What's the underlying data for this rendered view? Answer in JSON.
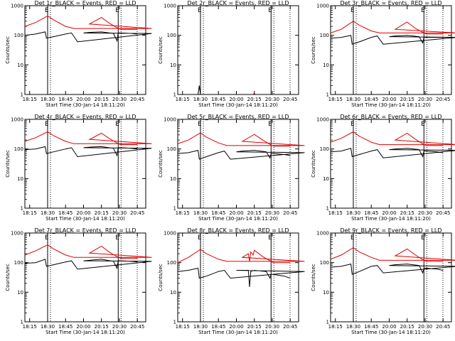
{
  "colors": {
    "events": "#000000",
    "lld": "#e00000",
    "background": "#ffffff"
  },
  "x_tick_labels": [
    "18:15",
    "18:30",
    "18:45",
    "20:00",
    "20:15",
    "20:30",
    "20:45"
  ],
  "y_tick_labels": [
    "1",
    "10",
    "100",
    "1000"
  ],
  "chart_data": [
    {
      "type": "line",
      "title": "Det 1r_BLACK = Events, RED = LLD",
      "xlabel": "Start Time (30-Jan-14 18:11:20)",
      "ylabel": "Counts/sec",
      "yscale": "log",
      "ylim": [
        1,
        1000
      ],
      "series": [
        {
          "name": "Events",
          "x": [
            "18:11",
            "18:20",
            "18:28",
            "18:29",
            "18:35",
            "18:45",
            "18:50",
            "18:55",
            "19:57",
            "20:00",
            "20:05",
            "20:15",
            "20:25",
            "20:28",
            "20:29",
            "20:31",
            "20:40",
            "20:45"
          ],
          "values": [
            100,
            110,
            130,
            80,
            90,
            110,
            120,
            60,
            115,
            120,
            125,
            130,
            115,
            65,
            120,
            120,
            115,
            110
          ]
        },
        {
          "name": "LLD",
          "x": [
            "18:11",
            "18:20",
            "18:30",
            "18:35",
            "18:45",
            "18:52",
            "19:57",
            "20:05",
            "20:15",
            "20:22",
            "20:29",
            "20:31",
            "20:45"
          ],
          "values": [
            200,
            270,
            450,
            330,
            200,
            170,
            170,
            240,
            400,
            250,
            170,
            160,
            160
          ]
        }
      ]
    },
    {
      "type": "line",
      "title": "Det 2r_BLACK = Events, RED = LLD",
      "xlabel": "Start Time (30-Jan-14 18:11:20)",
      "ylabel": "Counts/sec",
      "yscale": "log",
      "ylim": [
        1,
        1000
      ],
      "series": [
        {
          "name": "Events",
          "x": [
            "18:28",
            "18:29",
            "18:30"
          ],
          "values": [
            1,
            2,
            1
          ]
        },
        {
          "name": "LLD",
          "x": [
            "20:14",
            "20:15",
            "20:16"
          ],
          "values": [
            1,
            1.1,
            1
          ]
        }
      ]
    },
    {
      "type": "line",
      "title": "Det 3r_BLACK = Events, RED = LLD",
      "xlabel": "Start Time (30-Jan-14 18:11:20)",
      "ylabel": "Counts/sec",
      "yscale": "log",
      "ylim": [
        1,
        1000
      ],
      "series": [
        {
          "name": "Events",
          "x": [
            "18:11",
            "18:20",
            "18:28",
            "18:29",
            "18:35",
            "18:45",
            "18:50",
            "18:55",
            "19:57",
            "20:00",
            "20:05",
            "20:15",
            "20:25",
            "20:28",
            "20:29",
            "20:31",
            "20:40",
            "20:45"
          ],
          "values": [
            80,
            85,
            100,
            50,
            60,
            85,
            95,
            50,
            85,
            90,
            95,
            100,
            90,
            55,
            85,
            85,
            85,
            85
          ]
        },
        {
          "name": "LLD",
          "x": [
            "18:11",
            "18:20",
            "18:30",
            "18:35",
            "18:45",
            "18:52",
            "19:57",
            "20:05",
            "20:15",
            "20:22",
            "20:29",
            "20:31",
            "20:45"
          ],
          "values": [
            120,
            160,
            300,
            220,
            140,
            120,
            120,
            160,
            280,
            170,
            120,
            110,
            110
          ]
        }
      ]
    },
    {
      "type": "line",
      "title": "Det 4r_BLACK = Events, RED = LLD",
      "xlabel": "Start Time (30-Jan-14 18:11:20)",
      "ylabel": "Counts/sec",
      "yscale": "log",
      "ylim": [
        1,
        1000
      ],
      "series": [
        {
          "name": "Events",
          "x": [
            "18:11",
            "18:20",
            "18:28",
            "18:29",
            "18:35",
            "18:45",
            "18:50",
            "18:55",
            "19:57",
            "20:00",
            "20:05",
            "20:15",
            "20:25",
            "20:28",
            "20:29",
            "20:31",
            "20:40",
            "20:45"
          ],
          "values": [
            95,
            100,
            120,
            70,
            80,
            100,
            110,
            55,
            105,
            110,
            115,
            120,
            105,
            60,
            110,
            110,
            105,
            100
          ]
        },
        {
          "name": "LLD",
          "x": [
            "18:11",
            "18:20",
            "18:30",
            "18:35",
            "18:45",
            "18:52",
            "19:57",
            "20:05",
            "20:15",
            "20:22",
            "20:29",
            "20:31",
            "20:45"
          ],
          "values": [
            180,
            240,
            380,
            280,
            180,
            150,
            150,
            210,
            340,
            220,
            150,
            140,
            140
          ]
        }
      ]
    },
    {
      "type": "line",
      "title": "Det 5r_BLACK = Events, RED = LLD",
      "xlabel": "Start Time (30-Jan-14 18:11:20)",
      "ylabel": "Counts/sec",
      "yscale": "log",
      "ylim": [
        1,
        1000
      ],
      "series": [
        {
          "name": "Events",
          "x": [
            "18:11",
            "18:20",
            "18:28",
            "18:29",
            "18:35",
            "18:45",
            "18:50",
            "18:55",
            "19:57",
            "20:00",
            "20:05",
            "20:15",
            "20:25",
            "20:28",
            "20:29",
            "20:31",
            "20:40",
            "20:45"
          ],
          "values": [
            70,
            75,
            90,
            45,
            55,
            75,
            85,
            45,
            75,
            80,
            85,
            90,
            80,
            50,
            70,
            70,
            65,
            60
          ]
        },
        {
          "name": "LLD",
          "x": [
            "18:11",
            "18:20",
            "18:30",
            "18:35",
            "18:45",
            "18:52",
            "19:57",
            "20:05",
            "20:15",
            "20:22",
            "20:29",
            "20:31",
            "20:45"
          ],
          "values": [
            150,
            200,
            350,
            250,
            160,
            130,
            130,
            180,
            310,
            200,
            135,
            125,
            125
          ]
        }
      ]
    },
    {
      "type": "line",
      "title": "Det 6r_BLACK = Events, RED = LLD",
      "xlabel": "Start Time (30-Jan-14 18:11:20)",
      "ylabel": "Counts/sec",
      "yscale": "log",
      "ylim": [
        1,
        1000
      ],
      "series": [
        {
          "name": "Events",
          "x": [
            "18:11",
            "18:20",
            "18:28",
            "18:29",
            "18:35",
            "18:45",
            "18:50",
            "18:55",
            "19:57",
            "20:00",
            "20:05",
            "20:15",
            "20:25",
            "20:28",
            "20:29",
            "20:31",
            "20:40",
            "20:45"
          ],
          "values": [
            80,
            85,
            105,
            55,
            65,
            85,
            95,
            50,
            90,
            95,
            100,
            105,
            95,
            55,
            85,
            85,
            80,
            75
          ]
        },
        {
          "name": "LLD",
          "x": [
            "18:11",
            "18:20",
            "18:30",
            "18:35",
            "18:45",
            "18:52",
            "19:57",
            "20:05",
            "20:15",
            "20:22",
            "20:29",
            "20:31",
            "20:45"
          ],
          "values": [
            170,
            230,
            380,
            270,
            170,
            140,
            140,
            200,
            340,
            210,
            140,
            130,
            130
          ]
        }
      ]
    },
    {
      "type": "line",
      "title": "Det 7r_BLACK = Events, RED = LLD",
      "xlabel": "Start Time (30-Jan-14 18:11:20)",
      "ylabel": "Counts/sec",
      "yscale": "log",
      "ylim": [
        1,
        1000
      ],
      "series": [
        {
          "name": "Events",
          "x": [
            "18:11",
            "18:20",
            "18:28",
            "18:29",
            "18:35",
            "18:45",
            "18:50",
            "18:55",
            "19:57",
            "20:00",
            "20:05",
            "20:15",
            "20:25",
            "20:28",
            "20:29",
            "20:31",
            "20:40",
            "20:45"
          ],
          "values": [
            95,
            100,
            130,
            75,
            85,
            105,
            115,
            60,
            110,
            115,
            120,
            130,
            110,
            65,
            115,
            115,
            110,
            105
          ]
        },
        {
          "name": "LLD",
          "x": [
            "18:11",
            "18:20",
            "18:30",
            "18:35",
            "18:45",
            "18:52",
            "19:57",
            "20:05",
            "20:15",
            "20:22",
            "20:29",
            "20:31",
            "20:45"
          ],
          "values": [
            180,
            250,
            400,
            290,
            180,
            150,
            150,
            210,
            360,
            220,
            150,
            140,
            140
          ]
        }
      ]
    },
    {
      "type": "line",
      "title": "Det 8r_BLACK = Events, RED = LLD",
      "xlabel": "Start Time (30-Jan-14 18:11:20)",
      "ylabel": "Counts/sec",
      "yscale": "log",
      "ylim": [
        1,
        1000
      ],
      "series": [
        {
          "name": "Events",
          "x": [
            "18:11",
            "18:20",
            "18:28",
            "18:29",
            "18:35",
            "18:45",
            "18:50",
            "18:55",
            "19:57",
            "20:00",
            "20:05",
            "20:10",
            "20:11",
            "20:12",
            "20:15",
            "20:25",
            "20:28",
            "20:29",
            "20:31",
            "20:40",
            "20:45"
          ],
          "values": [
            50,
            55,
            65,
            30,
            35,
            50,
            55,
            30,
            50,
            55,
            55,
            55,
            15,
            50,
            55,
            50,
            30,
            40,
            40,
            35,
            30
          ]
        },
        {
          "name": "LLD",
          "x": [
            "18:11",
            "18:20",
            "18:30",
            "18:35",
            "18:45",
            "18:52",
            "19:57",
            "20:05",
            "20:10",
            "20:11",
            "20:12",
            "20:14",
            "20:15",
            "20:22",
            "20:29",
            "20:31",
            "20:45"
          ],
          "values": [
            100,
            150,
            280,
            200,
            130,
            110,
            110,
            150,
            200,
            110,
            230,
            180,
            260,
            160,
            110,
            100,
            100
          ]
        }
      ]
    },
    {
      "type": "line",
      "title": "Det 9r_BLACK = Events, RED = LLD",
      "xlabel": "Start Time (30-Jan-14 18:11:20)",
      "ylabel": "Counts/sec",
      "yscale": "log",
      "ylim": [
        1,
        1000
      ],
      "series": [
        {
          "name": "Events",
          "x": [
            "18:11",
            "18:20",
            "18:28",
            "18:29",
            "18:35",
            "18:45",
            "18:50",
            "18:55",
            "19:57",
            "20:00",
            "20:05",
            "20:15",
            "20:25",
            "20:28",
            "20:29",
            "20:31",
            "20:40",
            "20:45"
          ],
          "values": [
            70,
            75,
            90,
            40,
            50,
            75,
            80,
            45,
            75,
            80,
            85,
            90,
            80,
            45,
            65,
            65,
            60,
            55
          ]
        },
        {
          "name": "LLD",
          "x": [
            "18:11",
            "18:20",
            "18:30",
            "18:35",
            "18:45",
            "18:52",
            "19:57",
            "20:05",
            "20:15",
            "20:22",
            "20:29",
            "20:31",
            "20:45"
          ],
          "values": [
            130,
            180,
            320,
            230,
            150,
            120,
            120,
            170,
            290,
            180,
            120,
            110,
            110
          ]
        }
      ]
    }
  ]
}
